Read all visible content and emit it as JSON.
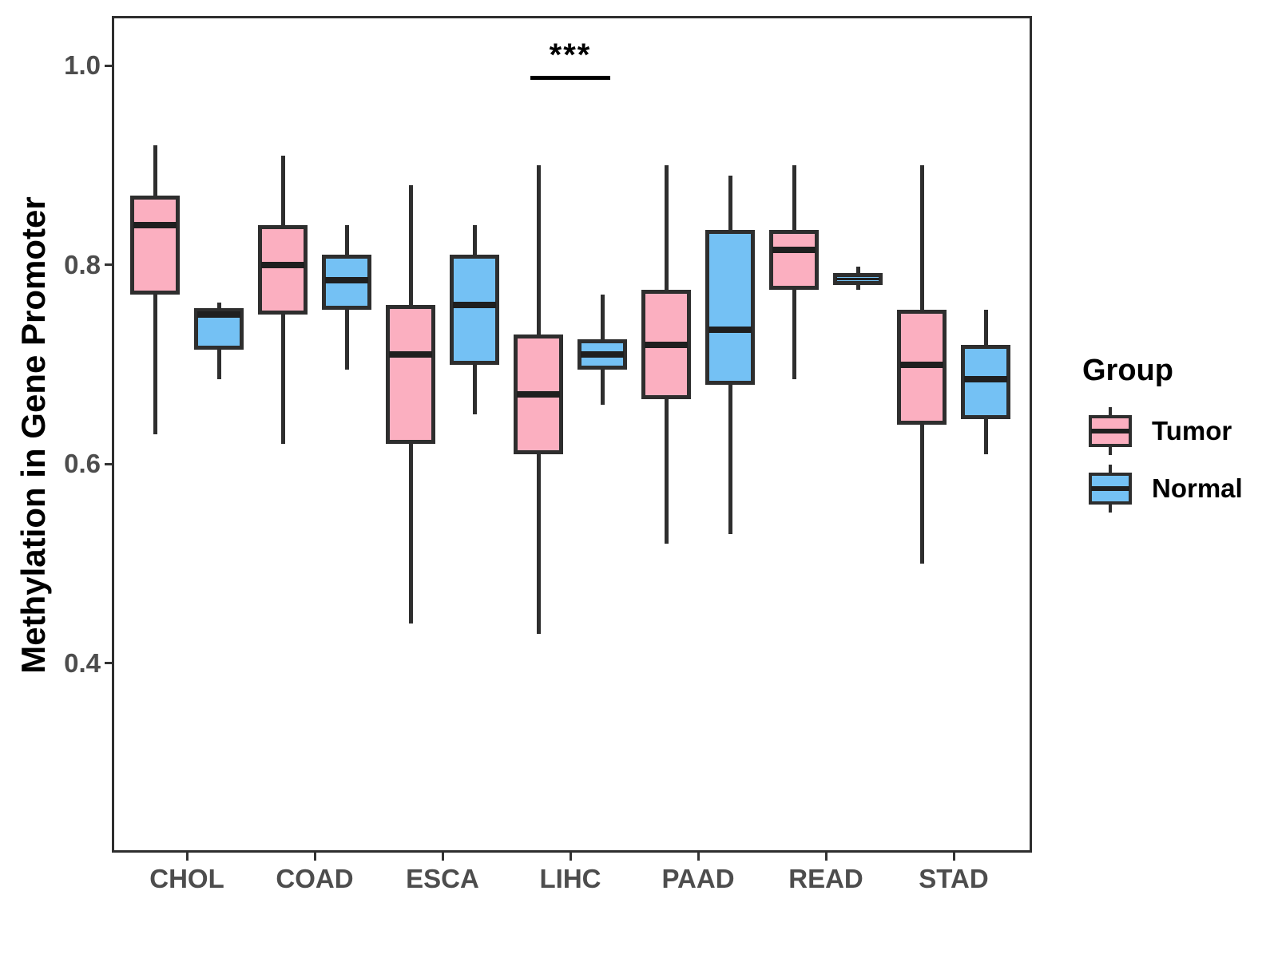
{
  "chart_data": {
    "type": "grouped_boxplot",
    "title": "",
    "xlabel": "",
    "ylabel": "Methylation in Gene Promoter",
    "categories": [
      "CHOL",
      "COAD",
      "ESCA",
      "LIHC",
      "PAAD",
      "READ",
      "STAD"
    ],
    "ytick_labels": [
      "1.0",
      "0.8",
      "0.6",
      "0.4"
    ],
    "ytick_values": [
      1.0,
      0.8,
      0.6,
      0.4
    ],
    "ylim": [
      0.21,
      1.05
    ],
    "grid": false,
    "legend": {
      "title": "Group",
      "position": "right"
    },
    "series": [
      {
        "name": "Tumor",
        "fill": "#FBAFC0",
        "boxes": [
          {
            "category": "CHOL",
            "whislo": 0.63,
            "q1": 0.77,
            "med": 0.84,
            "q3": 0.87,
            "whishi": 0.92
          },
          {
            "category": "COAD",
            "whislo": 0.62,
            "q1": 0.75,
            "med": 0.8,
            "q3": 0.84,
            "whishi": 0.91
          },
          {
            "category": "ESCA",
            "whislo": 0.44,
            "q1": 0.62,
            "med": 0.71,
            "q3": 0.76,
            "whishi": 0.88
          },
          {
            "category": "LIHC",
            "whislo": 0.43,
            "q1": 0.61,
            "med": 0.67,
            "q3": 0.73,
            "whishi": 0.9
          },
          {
            "category": "PAAD",
            "whislo": 0.52,
            "q1": 0.665,
            "med": 0.72,
            "q3": 0.775,
            "whishi": 0.9
          },
          {
            "category": "READ",
            "whislo": 0.685,
            "q1": 0.775,
            "med": 0.815,
            "q3": 0.835,
            "whishi": 0.9
          },
          {
            "category": "STAD",
            "whislo": 0.5,
            "q1": 0.64,
            "med": 0.7,
            "q3": 0.755,
            "whishi": 0.9
          }
        ]
      },
      {
        "name": "Normal",
        "fill": "#74C1F4",
        "boxes": [
          {
            "category": "CHOL",
            "whislo": 0.685,
            "q1": 0.715,
            "med": 0.75,
            "q3": 0.757,
            "whishi": 0.762
          },
          {
            "category": "COAD",
            "whislo": 0.695,
            "q1": 0.755,
            "med": 0.785,
            "q3": 0.81,
            "whishi": 0.84
          },
          {
            "category": "ESCA",
            "whislo": 0.65,
            "q1": 0.7,
            "med": 0.76,
            "q3": 0.81,
            "whishi": 0.84
          },
          {
            "category": "LIHC",
            "whislo": 0.66,
            "q1": 0.695,
            "med": 0.71,
            "q3": 0.725,
            "whishi": 0.77
          },
          {
            "category": "PAAD",
            "whislo": 0.53,
            "q1": 0.68,
            "med": 0.735,
            "q3": 0.835,
            "whishi": 0.89
          },
          {
            "category": "READ",
            "whislo": 0.775,
            "q1": 0.78,
            "med": 0.786,
            "q3": 0.792,
            "whishi": 0.798
          },
          {
            "category": "STAD",
            "whislo": 0.61,
            "q1": 0.645,
            "med": 0.685,
            "q3": 0.72,
            "whishi": 0.755
          }
        ]
      }
    ],
    "annotations": [
      {
        "label": "***",
        "category": "LIHC",
        "y": 0.99
      }
    ]
  },
  "colors": {
    "background": "#FFFFFF",
    "panel_border": "#2E2E2E",
    "box_border": "#2E2E2E",
    "median": "#1F1F1F",
    "whisker": "#2E2E2E",
    "axis_text": "#4D4D4D",
    "title_text": "#000000"
  }
}
